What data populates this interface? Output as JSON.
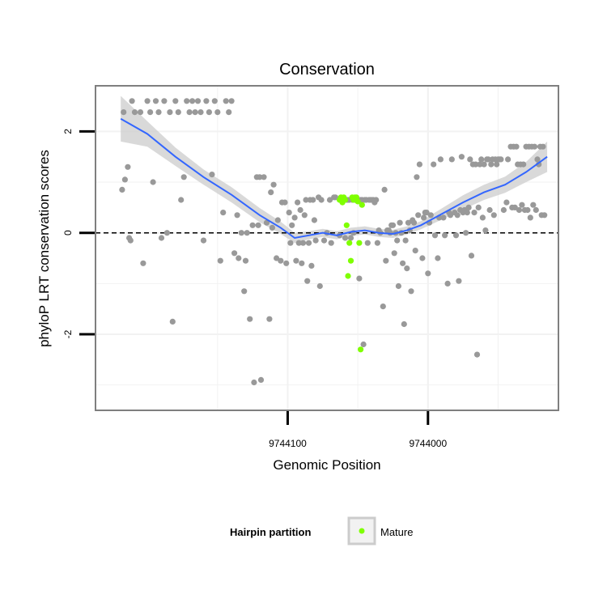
{
  "chart_data": {
    "type": "scatter",
    "title": "Conservation",
    "xlabel": "Genomic Position",
    "ylabel": "phyloP LRT conservation scores",
    "x_axis_reversed": true,
    "xlim": [
      9744237,
      9743907
    ],
    "ylim": [
      -3.5,
      2.9
    ],
    "x_ticks": [
      {
        "value": 9744100,
        "label": "9744100"
      },
      {
        "value": 9744000,
        "label": "9744000"
      }
    ],
    "y_ticks": [
      {
        "value": 2,
        "label": "2"
      },
      {
        "value": 0,
        "label": "0"
      },
      {
        "value": -2,
        "label": "-2"
      }
    ],
    "reference_line": {
      "y": 0,
      "style": "dashed"
    },
    "grid": true,
    "legend": {
      "title": "Hairpin partition",
      "placement": "bottom",
      "entries": [
        {
          "label": "Mature",
          "color": "#7FFF00"
        }
      ]
    },
    "colors": {
      "other": "#999999",
      "mature": "#7FFF00",
      "smooth": "#3366FF",
      "ribbon": "#CCCCCC",
      "panel_border": "#7F7F7F",
      "grid": "#F2F2F2"
    },
    "series": [
      {
        "name": "Other",
        "color": "#999999",
        "points": [
          [
            9744218,
            0.85
          ],
          [
            9744217,
            2.38
          ],
          [
            9744216,
            1.05
          ],
          [
            9744214,
            1.3
          ],
          [
            9744213,
            -0.1
          ],
          [
            9744212,
            -0.15
          ],
          [
            9744211,
            2.6
          ],
          [
            9744209,
            2.38
          ],
          [
            9744205,
            2.38
          ],
          [
            9744203,
            -0.6
          ],
          [
            9744200,
            2.6
          ],
          [
            9744198,
            2.38
          ],
          [
            9744196,
            1.0
          ],
          [
            9744194,
            2.6
          ],
          [
            9744192,
            2.38
          ],
          [
            9744190,
            -0.1
          ],
          [
            9744188,
            2.6
          ],
          [
            9744186,
            0.0
          ],
          [
            9744184,
            2.38
          ],
          [
            9744182,
            -1.75
          ],
          [
            9744180,
            2.6
          ],
          [
            9744178,
            2.38
          ],
          [
            9744176,
            0.65
          ],
          [
            9744174,
            1.1
          ],
          [
            9744172,
            2.6
          ],
          [
            9744170,
            2.38
          ],
          [
            9744168,
            2.6
          ],
          [
            9744166,
            2.38
          ],
          [
            9744164,
            2.6
          ],
          [
            9744162,
            2.38
          ],
          [
            9744160,
            -0.15
          ],
          [
            9744158,
            2.6
          ],
          [
            9744156,
            2.38
          ],
          [
            9744154,
            1.15
          ],
          [
            9744152,
            2.6
          ],
          [
            9744150,
            2.38
          ],
          [
            9744148,
            -0.55
          ],
          [
            9744146,
            0.4
          ],
          [
            9744144,
            2.6
          ],
          [
            9744142,
            2.38
          ],
          [
            9744140,
            2.6
          ],
          [
            9744138,
            -0.4
          ],
          [
            9744136,
            0.35
          ],
          [
            9744135,
            -0.5
          ],
          [
            9744133,
            0.0
          ],
          [
            9744131,
            -1.15
          ],
          [
            9744130,
            -0.55
          ],
          [
            9744129,
            0.0
          ],
          [
            9744127,
            -1.7
          ],
          [
            9744125,
            0.15
          ],
          [
            9744124,
            -2.95
          ],
          [
            9744122,
            1.1
          ],
          [
            9744121,
            0.15
          ],
          [
            9744120,
            1.1
          ],
          [
            9744119,
            -2.9
          ],
          [
            9744117,
            1.1
          ],
          [
            9744115,
            0.2
          ],
          [
            9744113,
            -1.7
          ],
          [
            9744112,
            0.8
          ],
          [
            9744111,
            0.1
          ],
          [
            9744110,
            0.95
          ],
          [
            9744108,
            -0.5
          ],
          [
            9744107,
            0.25
          ],
          [
            9744105,
            -0.55
          ],
          [
            9744104,
            0.6
          ],
          [
            9744102,
            0.6
          ],
          [
            9744101,
            -0.6
          ],
          [
            9744099,
            0.4
          ],
          [
            9744098,
            -0.2
          ],
          [
            9744097,
            0.15
          ],
          [
            9744095,
            0.3
          ],
          [
            9744094,
            -0.55
          ],
          [
            9744093,
            0.6
          ],
          [
            9744092,
            -0.2
          ],
          [
            9744091,
            0.45
          ],
          [
            9744090,
            -0.6
          ],
          [
            9744089,
            -0.2
          ],
          [
            9744088,
            0.35
          ],
          [
            9744087,
            0.65
          ],
          [
            9744086,
            -0.95
          ],
          [
            9744085,
            -0.2
          ],
          [
            9744084,
            0.65
          ],
          [
            9744083,
            -0.65
          ],
          [
            9744082,
            0.65
          ],
          [
            9744081,
            0.25
          ],
          [
            9744080,
            -0.15
          ],
          [
            9744078,
            0.7
          ],
          [
            9744077,
            -1.05
          ],
          [
            9744076,
            0.65
          ],
          [
            9744074,
            -0.15
          ],
          [
            9744072,
            0.0
          ],
          [
            9744070,
            0.65
          ],
          [
            9744069,
            -0.2
          ],
          [
            9744067,
            0.7
          ],
          [
            9744066,
            0.7
          ],
          [
            9744063,
            -0.05
          ],
          [
            9744062,
            0.65
          ],
          [
            9744061,
            0.65
          ],
          [
            9744060,
            0.65
          ],
          [
            9744059,
            -0.1
          ],
          [
            9744058,
            0.65
          ],
          [
            9744057,
            0.65
          ],
          [
            9744056,
            0.65
          ],
          [
            9744055,
            -0.1
          ],
          [
            9744054,
            0.65
          ],
          [
            9744053,
            0.0
          ],
          [
            9744052,
            0.65
          ],
          [
            9744051,
            0.65
          ],
          [
            9744050,
            0.65
          ],
          [
            9744049,
            -0.9
          ],
          [
            9744048,
            0.65
          ],
          [
            9744047,
            0.65
          ],
          [
            9744046,
            -2.2
          ],
          [
            9744045,
            0.65
          ],
          [
            9744044,
            0.65
          ],
          [
            9744043,
            -0.2
          ],
          [
            9744042,
            0.65
          ],
          [
            9744041,
            0.65
          ],
          [
            9744040,
            0.65
          ],
          [
            9744039,
            0.65
          ],
          [
            9744038,
            0.6
          ],
          [
            9744037,
            0.65
          ],
          [
            9744036,
            -0.2
          ],
          [
            9744035,
            0.05
          ],
          [
            9744034,
            0.0
          ],
          [
            9744032,
            -1.45
          ],
          [
            9744031,
            0.85
          ],
          [
            9744030,
            -0.55
          ],
          [
            9744029,
            0.05
          ],
          [
            9744028,
            0.05
          ],
          [
            9744027,
            0.0
          ],
          [
            9744026,
            0.15
          ],
          [
            9744025,
            0.15
          ],
          [
            9744024,
            -0.4
          ],
          [
            9744023,
            0.0
          ],
          [
            9744022,
            -0.15
          ],
          [
            9744021,
            -1.05
          ],
          [
            9744020,
            0.2
          ],
          [
            9744019,
            0.0
          ],
          [
            9744018,
            -0.6
          ],
          [
            9744017,
            -1.8
          ],
          [
            9744016,
            -0.15
          ],
          [
            9744015,
            -0.7
          ],
          [
            9744014,
            0.2
          ],
          [
            9744013,
            0.05
          ],
          [
            9744012,
            -1.15
          ],
          [
            9744011,
            0.25
          ],
          [
            9744010,
            0.2
          ],
          [
            9744009,
            -0.35
          ],
          [
            9744008,
            1.1
          ],
          [
            9744007,
            0.35
          ],
          [
            9744006,
            1.35
          ],
          [
            9744004,
            -0.5
          ],
          [
            9744003,
            0.3
          ],
          [
            9744002,
            0.4
          ],
          [
            9744001,
            0.4
          ],
          [
            9744000,
            -0.8
          ],
          [
            9743999,
            0.2
          ],
          [
            9743998,
            0.35
          ],
          [
            9743996,
            1.35
          ],
          [
            9743995,
            -0.05
          ],
          [
            9743993,
            -0.5
          ],
          [
            9743992,
            0.3
          ],
          [
            9743991,
            1.45
          ],
          [
            9743989,
            0.3
          ],
          [
            9743988,
            -0.05
          ],
          [
            9743986,
            -1.0
          ],
          [
            9743985,
            0.4
          ],
          [
            9743984,
            0.35
          ],
          [
            9743983,
            1.45
          ],
          [
            9743981,
            0.4
          ],
          [
            9743980,
            -0.05
          ],
          [
            9743979,
            0.35
          ],
          [
            9743978,
            -0.95
          ],
          [
            9743977,
            0.45
          ],
          [
            9743976,
            1.5
          ],
          [
            9743975,
            0.4
          ],
          [
            9743974,
            0.45
          ],
          [
            9743973,
            0.0
          ],
          [
            9743972,
            0.4
          ],
          [
            9743971,
            0.5
          ],
          [
            9743970,
            1.45
          ],
          [
            9743969,
            -0.45
          ],
          [
            9743968,
            1.35
          ],
          [
            9743967,
            0.4
          ],
          [
            9743966,
            1.35
          ],
          [
            9743965,
            -2.4
          ],
          [
            9743964,
            0.5
          ],
          [
            9743963,
            1.35
          ],
          [
            9743962,
            1.45
          ],
          [
            9743961,
            0.3
          ],
          [
            9743960,
            1.35
          ],
          [
            9743959,
            0.05
          ],
          [
            9743958,
            1.45
          ],
          [
            9743957,
            1.45
          ],
          [
            9743956,
            0.45
          ],
          [
            9743955,
            1.35
          ],
          [
            9743954,
            1.45
          ],
          [
            9743953,
            0.35
          ],
          [
            9743952,
            1.45
          ],
          [
            9743951,
            1.35
          ],
          [
            9743950,
            1.45
          ],
          [
            9743949,
            1.45
          ],
          [
            9743948,
            1.45
          ],
          [
            9743946,
            0.45
          ],
          [
            9743944,
            0.6
          ],
          [
            9743943,
            1.45
          ],
          [
            9743941,
            1.7
          ],
          [
            9743940,
            0.5
          ],
          [
            9743939,
            1.7
          ],
          [
            9743938,
            0.5
          ],
          [
            9743937,
            1.7
          ],
          [
            9743936,
            1.35
          ],
          [
            9743935,
            0.45
          ],
          [
            9743934,
            1.35
          ],
          [
            9743933,
            0.55
          ],
          [
            9743932,
            1.35
          ],
          [
            9743931,
            0.45
          ],
          [
            9743930,
            1.7
          ],
          [
            9743929,
            0.45
          ],
          [
            9743928,
            1.7
          ],
          [
            9743927,
            0.3
          ],
          [
            9743926,
            1.7
          ],
          [
            9743925,
            0.55
          ],
          [
            9743924,
            1.7
          ],
          [
            9743923,
            0.45
          ],
          [
            9743922,
            1.45
          ],
          [
            9743921,
            1.35
          ],
          [
            9743920,
            1.7
          ],
          [
            9743919,
            0.35
          ],
          [
            9743918,
            1.7
          ],
          [
            9743917,
            0.35
          ]
        ]
      },
      {
        "name": "Mature",
        "color": "#7FFF00",
        "points": [
          [
            9744063,
            0.65
          ],
          [
            9744062,
            0.7
          ],
          [
            9744061,
            0.6
          ],
          [
            9744060,
            0.7
          ],
          [
            9744059,
            0.65
          ],
          [
            9744058,
            0.15
          ],
          [
            9744057,
            -0.85
          ],
          [
            9744056,
            -0.2
          ],
          [
            9744055,
            -0.55
          ],
          [
            9744054,
            0.7
          ],
          [
            9744053,
            0.65
          ],
          [
            9744052,
            0.7
          ],
          [
            9744051,
            0.7
          ],
          [
            9744050,
            0.62
          ],
          [
            9744049,
            -0.2
          ],
          [
            9744048,
            -2.3
          ],
          [
            9744047,
            0.55
          ]
        ]
      }
    ],
    "smooth": {
      "x": [
        9744219,
        9744200,
        9744180,
        9744160,
        9744140,
        9744120,
        9744105,
        9744095,
        9744085,
        9744075,
        9744065,
        9744055,
        9744045,
        9744035,
        9744025,
        9744015,
        9744005,
        9743995,
        9743985,
        9743975,
        9743960,
        9743945,
        9743930,
        9743915
      ],
      "y": [
        2.25,
        1.95,
        1.5,
        1.1,
        0.75,
        0.35,
        0.1,
        -0.1,
        -0.05,
        0.0,
        -0.05,
        0.02,
        0.05,
        0.0,
        -0.02,
        0.05,
        0.15,
        0.3,
        0.45,
        0.6,
        0.8,
        0.95,
        1.2,
        1.5
      ],
      "se": [
        0.45,
        0.25,
        0.18,
        0.15,
        0.15,
        0.14,
        0.12,
        0.1,
        0.08,
        0.08,
        0.08,
        0.08,
        0.08,
        0.08,
        0.08,
        0.08,
        0.08,
        0.1,
        0.12,
        0.14,
        0.15,
        0.16,
        0.2,
        0.3
      ]
    }
  }
}
